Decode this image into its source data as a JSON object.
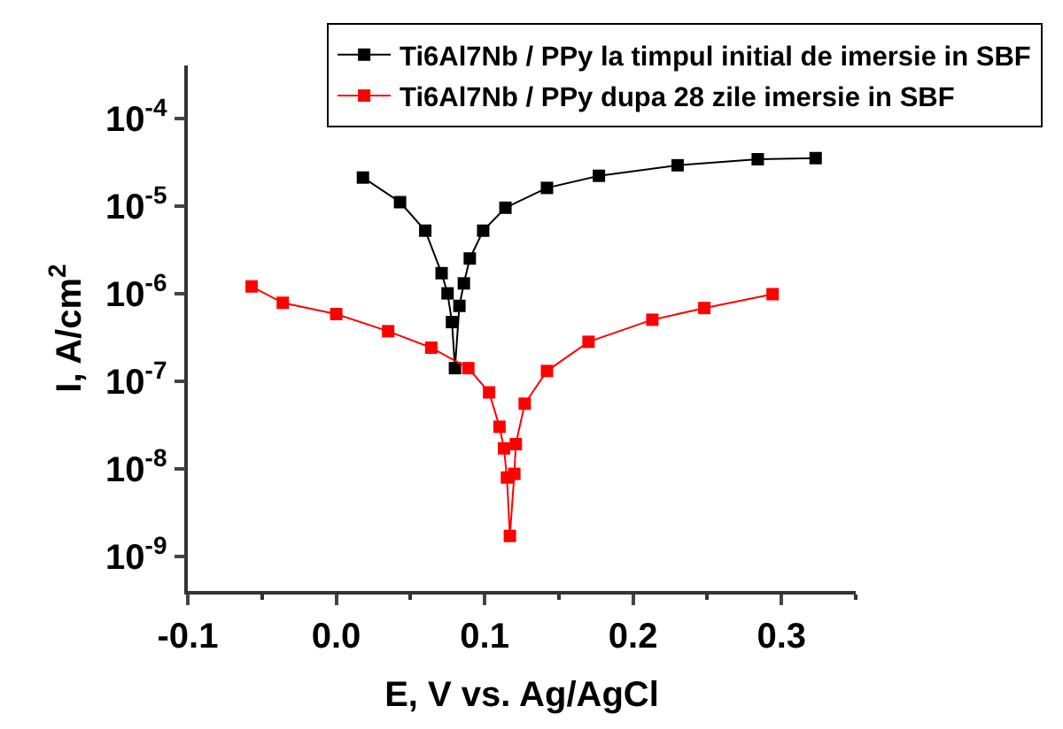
{
  "chart_data": {
    "type": "line",
    "xlabel": "E, V vs. Ag/AgCl",
    "ylabel": "I, A/cm$^{2}$",
    "log": "y",
    "xlim": [
      -0.1,
      0.35
    ],
    "xticks": [
      -0.1,
      {
        "value": 0,
        "label": "0.0"
      },
      0.1,
      0.2,
      0.3
    ],
    "ylim": [
      4e-10,
      0.0004
    ],
    "yticks": [
      {
        "value": 1e-09,
        "label": "10$^{-9}$"
      },
      {
        "value": 1e-08,
        "label": "10$^{-8}$"
      },
      {
        "value": 1e-07,
        "label": "10$^{-7}$"
      },
      {
        "value": 1e-06,
        "label": "10$^{-6}$"
      },
      {
        "value": 1e-05,
        "label": "10$^{-5}$"
      },
      {
        "value": 0.0001,
        "label": "10$^{-4}$"
      }
    ],
    "legend": "top right",
    "marker": "square",
    "line_style": "solid",
    "series": [
      {
        "name": "Ti6Al7Nb / PPy la timpul initial de imersie in SBF",
        "color": "#000000",
        "x": [
          0.018,
          0.043,
          0.06,
          0.071,
          0.075,
          0.078,
          0.08,
          0.083,
          0.086,
          0.09,
          0.099,
          0.114,
          0.142,
          0.177,
          0.23,
          0.284,
          0.323
        ],
        "values": [
          2.1e-05,
          1.1e-05,
          5.2e-06,
          1.7e-06,
          1e-06,
          4.7e-07,
          1.4e-07,
          7.2e-07,
          1.3e-06,
          2.5e-06,
          5.2e-06,
          9.5e-06,
          1.6e-05,
          2.2e-05,
          2.9e-05,
          3.4e-05,
          3.5e-05
        ]
      },
      {
        "name": "Ti6Al7Nb / PPy dupa 28 zile imersie in SBF",
        "color": "#ff0000",
        "x": [
          -0.057,
          -0.036,
          0.0,
          0.035,
          0.064,
          0.089,
          0.103,
          0.11,
          0.113,
          0.115,
          0.117,
          0.12,
          0.121,
          0.127,
          0.142,
          0.17,
          0.213,
          0.248,
          0.294
        ],
        "values": [
          1.2e-06,
          7.8e-07,
          5.8e-07,
          3.7e-07,
          2.4e-07,
          1.4e-07,
          7.4e-08,
          3e-08,
          1.7e-08,
          7.9e-09,
          1.7e-09,
          8.7e-09,
          1.9e-08,
          5.5e-08,
          1.3e-07,
          2.8e-07,
          5e-07,
          6.8e-07,
          9.8e-07
        ]
      }
    ]
  }
}
